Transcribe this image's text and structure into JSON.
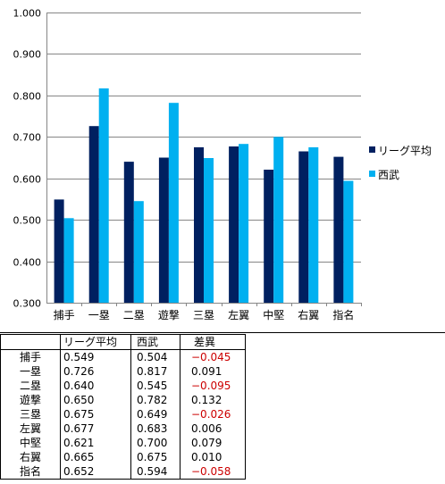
{
  "chart_data": {
    "type": "bar",
    "categories": [
      "捕手",
      "一塁",
      "二塁",
      "遊撃",
      "三塁",
      "左翼",
      "中堅",
      "右翼",
      "指名"
    ],
    "series": [
      {
        "name": "リーグ平均",
        "color": "#002060",
        "values": [
          0.549,
          0.726,
          0.64,
          0.65,
          0.675,
          0.677,
          0.621,
          0.665,
          0.652
        ]
      },
      {
        "name": "西武",
        "color": "#00B0F0",
        "values": [
          0.504,
          0.817,
          0.545,
          0.782,
          0.649,
          0.683,
          0.7,
          0.675,
          0.594
        ]
      }
    ],
    "ylim": [
      0.3,
      1.0
    ],
    "yticks": [
      "0.300",
      "0.400",
      "0.500",
      "0.600",
      "0.700",
      "0.800",
      "0.900",
      "1.000"
    ],
    "grid": true,
    "legend_position": "right"
  },
  "table": {
    "headers": [
      "",
      "リーグ平均",
      "西武",
      "差異"
    ],
    "rows": [
      {
        "label": "捕手",
        "avg": "0.549",
        "seibu": "0.504",
        "diff": "−0.045",
        "negative": true
      },
      {
        "label": "一塁",
        "avg": "0.726",
        "seibu": "0.817",
        "diff": "0.091",
        "negative": false
      },
      {
        "label": "二塁",
        "avg": "0.640",
        "seibu": "0.545",
        "diff": "−0.095",
        "negative": true
      },
      {
        "label": "遊撃",
        "avg": "0.650",
        "seibu": "0.782",
        "diff": "0.132",
        "negative": false
      },
      {
        "label": "三塁",
        "avg": "0.675",
        "seibu": "0.649",
        "diff": "−0.026",
        "negative": true
      },
      {
        "label": "左翼",
        "avg": "0.677",
        "seibu": "0.683",
        "diff": "0.006",
        "negative": false
      },
      {
        "label": "中堅",
        "avg": "0.621",
        "seibu": "0.700",
        "diff": "0.079",
        "negative": false
      },
      {
        "label": "右翼",
        "avg": "0.665",
        "seibu": "0.675",
        "diff": "0.010",
        "negative": false
      },
      {
        "label": "指名",
        "avg": "0.652",
        "seibu": "0.594",
        "diff": "−0.058",
        "negative": true
      }
    ],
    "negative_color": "#cc0000"
  }
}
